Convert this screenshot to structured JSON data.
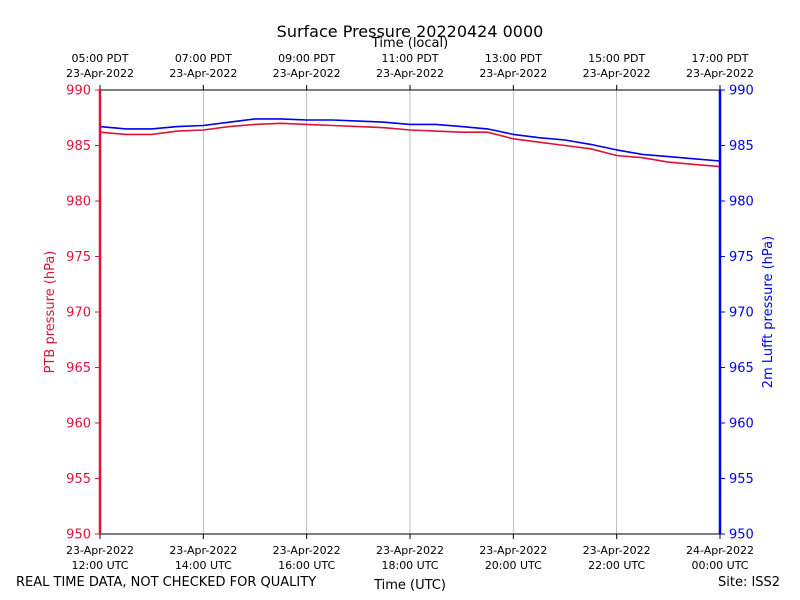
{
  "chart_data": {
    "type": "line",
    "title": "Surface Pressure 20220424 0000",
    "top_axis_label": "Time (local)",
    "xlabel": "Time (UTC)",
    "ylabel_left": "PTB pressure (hPa)",
    "ylabel_right": "2m Lufft pressure (hPa)",
    "ylim": [
      950,
      990
    ],
    "y_ticks": [
      950,
      955,
      960,
      965,
      970,
      975,
      980,
      985,
      990
    ],
    "x_range_hours": [
      12,
      24
    ],
    "x_ticks_utc": [
      {
        "hour": 12,
        "line1": "23-Apr-2022",
        "line2": "12:00 UTC"
      },
      {
        "hour": 14,
        "line1": "23-Apr-2022",
        "line2": "14:00 UTC"
      },
      {
        "hour": 16,
        "line1": "23-Apr-2022",
        "line2": "16:00 UTC"
      },
      {
        "hour": 18,
        "line1": "23-Apr-2022",
        "line2": "18:00 UTC"
      },
      {
        "hour": 20,
        "line1": "23-Apr-2022",
        "line2": "20:00 UTC"
      },
      {
        "hour": 22,
        "line1": "23-Apr-2022",
        "line2": "22:00 UTC"
      },
      {
        "hour": 24,
        "line1": "24-Apr-2022",
        "line2": "00:00 UTC"
      }
    ],
    "x_ticks_local": [
      {
        "hour": 12,
        "line1": "05:00 PDT",
        "line2": "23-Apr-2022"
      },
      {
        "hour": 14,
        "line1": "07:00 PDT",
        "line2": "23-Apr-2022"
      },
      {
        "hour": 16,
        "line1": "09:00 PDT",
        "line2": "23-Apr-2022"
      },
      {
        "hour": 18,
        "line1": "11:00 PDT",
        "line2": "23-Apr-2022"
      },
      {
        "hour": 20,
        "line1": "13:00 PDT",
        "line2": "23-Apr-2022"
      },
      {
        "hour": 22,
        "line1": "15:00 PDT",
        "line2": "23-Apr-2022"
      },
      {
        "hour": 24,
        "line1": "17:00 PDT",
        "line2": "23-Apr-2022"
      }
    ],
    "grid": "vertical",
    "series": [
      {
        "name": "PTB pressure",
        "axis": "left",
        "color": "#dc143c",
        "points": [
          [
            12.0,
            986.2
          ],
          [
            12.5,
            986.0
          ],
          [
            13.0,
            986.0
          ],
          [
            13.5,
            986.3
          ],
          [
            14.0,
            986.4
          ],
          [
            14.5,
            986.7
          ],
          [
            15.0,
            986.9
          ],
          [
            15.5,
            987.0
          ],
          [
            16.0,
            986.9
          ],
          [
            16.5,
            986.8
          ],
          [
            17.0,
            986.7
          ],
          [
            17.5,
            986.6
          ],
          [
            18.0,
            986.4
          ],
          [
            18.5,
            986.3
          ],
          [
            19.0,
            986.2
          ],
          [
            19.5,
            986.2
          ],
          [
            20.0,
            985.6
          ],
          [
            20.5,
            985.3
          ],
          [
            21.0,
            985.0
          ],
          [
            21.5,
            984.7
          ],
          [
            22.0,
            984.1
          ],
          [
            22.5,
            983.9
          ],
          [
            23.0,
            983.5
          ],
          [
            23.5,
            983.3
          ],
          [
            24.0,
            983.1
          ]
        ]
      },
      {
        "name": "2m Lufft pressure",
        "axis": "right",
        "color": "#0000ee",
        "points": [
          [
            12.0,
            986.7
          ],
          [
            12.5,
            986.5
          ],
          [
            13.0,
            986.5
          ],
          [
            13.5,
            986.7
          ],
          [
            14.0,
            986.8
          ],
          [
            14.5,
            987.1
          ],
          [
            15.0,
            987.4
          ],
          [
            15.5,
            987.4
          ],
          [
            16.0,
            987.3
          ],
          [
            16.5,
            987.3
          ],
          [
            17.0,
            987.2
          ],
          [
            17.5,
            987.1
          ],
          [
            18.0,
            986.9
          ],
          [
            18.5,
            986.9
          ],
          [
            19.0,
            986.7
          ],
          [
            19.5,
            986.5
          ],
          [
            20.0,
            986.0
          ],
          [
            20.5,
            985.7
          ],
          [
            21.0,
            985.5
          ],
          [
            21.5,
            985.1
          ],
          [
            22.0,
            984.6
          ],
          [
            22.5,
            984.2
          ],
          [
            23.0,
            984.0
          ],
          [
            23.5,
            983.8
          ],
          [
            24.0,
            983.6
          ]
        ]
      }
    ]
  },
  "footer": {
    "left_note": "REAL TIME DATA, NOT CHECKED FOR QUALITY",
    "site": "Site: ISS2"
  }
}
